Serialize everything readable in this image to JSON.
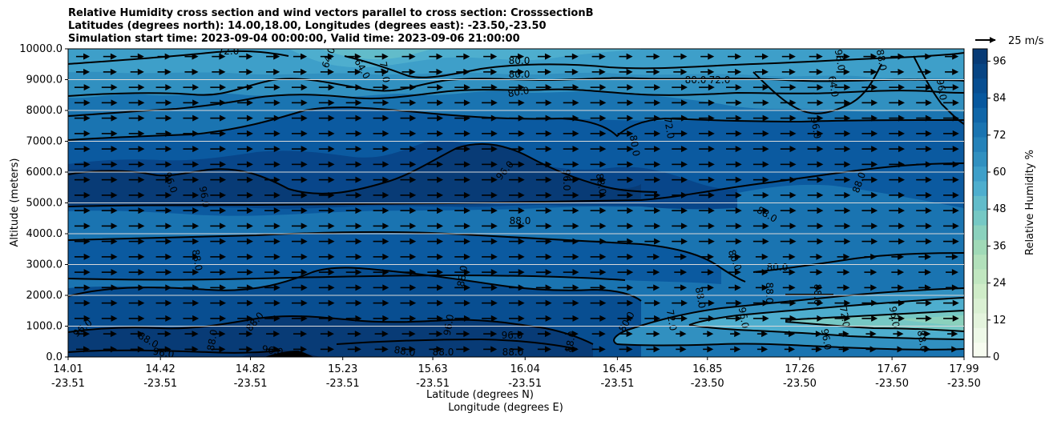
{
  "chart_data": {
    "type": "contourf-cross-section",
    "title_lines": [
      "Relative Humidity cross section and wind vectors parallel to cross section: CrosssectionB",
      "Latitudes (degrees north): 14.00,18.00, Longitudes (degrees east): -23.50,-23.50",
      "Simulation start time: 2023-09-04 00:00:00, Valid time: 2023-09-06 21:00:00"
    ],
    "ylabel": "Altitude (meters)",
    "xlabel_lat": "Latitude (degrees N)",
    "xlabel_lon": "Longitude (degrees E)",
    "xlim": [
      14.01,
      17.99
    ],
    "ylim": [
      0,
      10000
    ],
    "y_ticks": [
      {
        "value": 0,
        "label": "0.0"
      },
      {
        "value": 1000,
        "label": "1000.0"
      },
      {
        "value": 2000,
        "label": "2000.0"
      },
      {
        "value": 3000,
        "label": "3000.0"
      },
      {
        "value": 4000,
        "label": "4000.0"
      },
      {
        "value": 5000,
        "label": "5000.0"
      },
      {
        "value": 6000,
        "label": "6000.0"
      },
      {
        "value": 7000,
        "label": "7000.0"
      },
      {
        "value": 8000,
        "label": "8000.0"
      },
      {
        "value": 9000,
        "label": "9000.0"
      },
      {
        "value": 10000,
        "label": "10000.0"
      }
    ],
    "x_ticks": [
      {
        "lat": "14.01",
        "lon": "-23.51"
      },
      {
        "lat": "14.42",
        "lon": "-23.51"
      },
      {
        "lat": "14.82",
        "lon": "-23.51"
      },
      {
        "lat": "15.23",
        "lon": "-23.51"
      },
      {
        "lat": "15.63",
        "lon": "-23.51"
      },
      {
        "lat": "16.04",
        "lon": "-23.51"
      },
      {
        "lat": "16.45",
        "lon": "-23.51"
      },
      {
        "lat": "16.85",
        "lon": "-23.50"
      },
      {
        "lat": "17.26",
        "lon": "-23.50"
      },
      {
        "lat": "17.67",
        "lon": "-23.50"
      },
      {
        "lat": "17.99",
        "lon": "-23.50"
      }
    ],
    "colorbar": {
      "label": "Relative Humidity %",
      "range": [
        0,
        100
      ],
      "tick_values": [
        0,
        12,
        24,
        36,
        48,
        60,
        72,
        84,
        96
      ],
      "tick_labels": [
        "0",
        "12",
        "24",
        "36",
        "48",
        "60",
        "72",
        "84",
        "96"
      ],
      "colors": [
        "#f7fcf0",
        "#eef9e8",
        "#e4f4dd",
        "#daf0d3",
        "#cfecc8",
        "#c1e6c0",
        "#b2e0bb",
        "#a0d9b7",
        "#8bd1bd",
        "#76c8c4",
        "#62bcca",
        "#4eaece",
        "#3e9fc9",
        "#3190c0",
        "#2582b9",
        "#1a74b1",
        "#1066a8",
        "#08589e",
        "#084e91",
        "#084584",
        "#083b76"
      ]
    },
    "rh_field_sample": {
      "note": "approximate RH % values estimated from colour fill",
      "heights": [
        250,
        1500,
        3000,
        5000,
        7000,
        8500,
        9700
      ],
      "latitudes": [
        14.01,
        14.42,
        14.82,
        15.23,
        15.63,
        16.04,
        16.45,
        16.85,
        17.26,
        17.67,
        17.99
      ],
      "values": [
        [
          95,
          95,
          95,
          97,
          96,
          95,
          85,
          70,
          75,
          72,
          80
        ],
        [
          92,
          92,
          90,
          92,
          90,
          88,
          85,
          55,
          45,
          45,
          55
        ],
        [
          90,
          90,
          88,
          86,
          86,
          86,
          84,
          82,
          78,
          76,
          76
        ],
        [
          96,
          96,
          94,
          92,
          92,
          94,
          92,
          80,
          76,
          74,
          72
        ],
        [
          92,
          90,
          88,
          92,
          96,
          94,
          92,
          92,
          90,
          92,
          92
        ],
        [
          86,
          84,
          82,
          84,
          84,
          80,
          82,
          86,
          88,
          88,
          84
        ],
        [
          70,
          70,
          68,
          64,
          70,
          68,
          72,
          74,
          72,
          72,
          70
        ]
      ]
    },
    "contour_labels": [
      "72.0",
      "64.0",
      "72.0",
      "64.0",
      "80.0",
      "80.0",
      "80.0",
      "80.0",
      "72.0",
      "64.0",
      "96.0",
      "88.0",
      "96.0",
      "96.0",
      "96.0",
      "96.0",
      "96.0",
      "88.0",
      "96.0",
      "72.0",
      "80.0",
      "88.0",
      "88.0",
      "80.0",
      "80.0",
      "88.0",
      "88.0",
      "88.0",
      "88.0",
      "88.0",
      "96.0",
      "88.0",
      "96.0",
      "96.0",
      "88.0",
      "88.0",
      "88.0",
      "96.0",
      "88.0",
      "88.0",
      "96.0",
      "80.0",
      "72.0",
      "88.0",
      "96.0",
      "72.0",
      "96.0",
      "96.0",
      "88.0",
      "88.0"
    ],
    "wind": {
      "direction": "parallel to cross section, toward increasing latitude",
      "reference_label": "25 m/s",
      "reference_speed_ms": 25
    }
  }
}
